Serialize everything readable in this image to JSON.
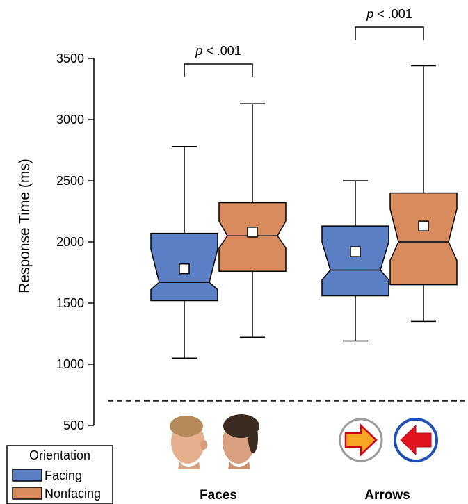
{
  "chart_data": {
    "type": "boxplot",
    "ylabel": "Response Time (ms)",
    "yticks": [
      500,
      1000,
      1500,
      2000,
      2500,
      3000,
      3500
    ],
    "ylim": [
      500,
      3500
    ],
    "reference_line": 700,
    "categories": [
      "Faces",
      "Arrows"
    ],
    "series": [
      {
        "name": "Facing",
        "color": "#5b7fc4",
        "boxes": [
          {
            "category": "Faces",
            "whisker_low": 1050,
            "q1": 1520,
            "notch_low": 1610,
            "median": 1670,
            "notch_high": 1940,
            "q3": 2070,
            "whisker_high": 2780,
            "mean": 1780
          },
          {
            "category": "Arrows",
            "whisker_low": 1190,
            "q1": 1560,
            "notch_low": 1690,
            "median": 1770,
            "notch_high": 2000,
            "q3": 2130,
            "whisker_high": 2500,
            "mean": 1920
          }
        ]
      },
      {
        "name": "Nonfacing",
        "color": "#d88c5e",
        "boxes": [
          {
            "category": "Faces",
            "whisker_low": 1220,
            "q1": 1760,
            "notch_low": 1950,
            "median": 2050,
            "notch_high": 2170,
            "q3": 2320,
            "whisker_high": 3130,
            "mean": 2080
          },
          {
            "category": "Arrows",
            "whisker_low": 1350,
            "q1": 1650,
            "notch_low": 1850,
            "median": 2000,
            "notch_high": 2270,
            "q3": 2400,
            "whisker_high": 3440,
            "mean": 2130
          }
        ]
      }
    ],
    "annotations": [
      {
        "category": "Faces",
        "text": "p < .001"
      },
      {
        "category": "Arrows",
        "text": "p < .001"
      }
    ],
    "legend": {
      "title": "Orientation",
      "position": "bottom-left"
    }
  }
}
